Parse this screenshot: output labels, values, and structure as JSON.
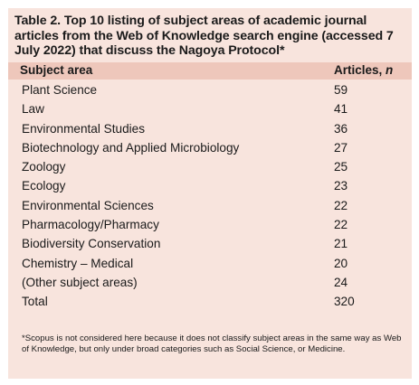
{
  "caption": "Table 2. Top 10 listing of subject areas of academic journal articles from the Web of Knowledge search engine (accessed 7 July 2022) that discuss the Nagoya Protocol*",
  "header": {
    "subject": "Subject area",
    "articles": "Articles, ",
    "articles_unit": "n"
  },
  "rows": [
    {
      "subject": "Plant Science",
      "count": "59"
    },
    {
      "subject": "Law",
      "count": "41"
    },
    {
      "subject": "Environmental Studies",
      "count": "36"
    },
    {
      "subject": "Biotechnology and Applied Microbiology",
      "count": "27"
    },
    {
      "subject": "Zoology",
      "count": "25"
    },
    {
      "subject": "Ecology",
      "count": "23"
    },
    {
      "subject": "Environmental Sciences",
      "count": "22"
    },
    {
      "subject": "Pharmacology/Pharmacy",
      "count": "22"
    },
    {
      "subject": "Biodiversity Conservation",
      "count": "21"
    },
    {
      "subject": "Chemistry – Medical",
      "count": "20"
    },
    {
      "subject": "(Other subject areas)",
      "count": "24"
    },
    {
      "subject": "Total",
      "count": "320"
    }
  ],
  "footnote": "*Scopus is not considered here because it does not classify subject areas in the same way as Web of Knowledge, but only under broad categories such as Social Science, or Medicine.",
  "colors": {
    "table_background": "#f8e4dd",
    "header_band": "#eec7bb"
  }
}
